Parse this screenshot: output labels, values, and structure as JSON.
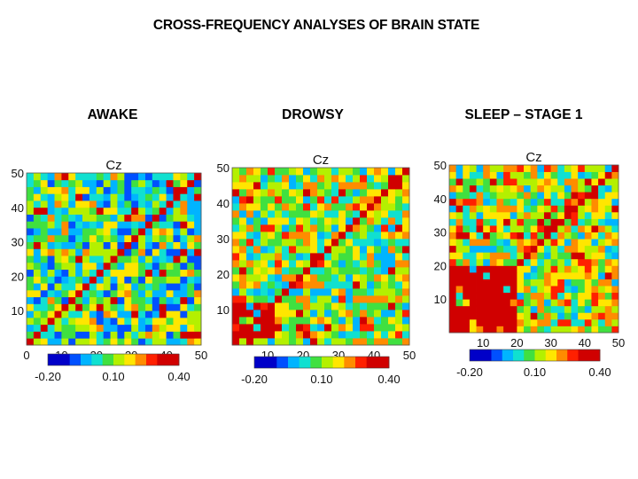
{
  "title": "CROSS-FREQUENCY ANALYSES OF BRAIN STATE",
  "chart_data": [
    {
      "type": "heatmap",
      "state": "AWAKE",
      "title": "Cz",
      "x_ticks": [
        "0",
        "10",
        "20",
        "30",
        "40",
        "50"
      ],
      "y_ticks": [
        "10",
        "20",
        "30",
        "40",
        "50"
      ],
      "xlim": [
        0,
        50
      ],
      "ylim": [
        0,
        50
      ],
      "colorbar": {
        "min_label": "-0.20",
        "mid_label": "0.10",
        "max_label": "0.40",
        "range": [
          -0.2,
          0.4
        ]
      },
      "description_values": {
        "background_level": 0.06,
        "diagonal_value": 0.4,
        "low_freq_block_value": null,
        "low_freq_block_extent": 0
      }
    },
    {
      "type": "heatmap",
      "state": "DROWSY",
      "title": "Cz",
      "x_ticks": [
        "10",
        "20",
        "30",
        "40",
        "50"
      ],
      "y_ticks": [
        "10",
        "20",
        "30",
        "40",
        "50"
      ],
      "xlim": [
        0,
        50
      ],
      "ylim": [
        0,
        50
      ],
      "colorbar": {
        "min_label": "-0.20",
        "mid_label": "0.10",
        "max_label": "0.40",
        "range": [
          -0.2,
          0.4
        ]
      },
      "description_values": {
        "background_level": 0.12,
        "diagonal_value": 0.4,
        "low_freq_block_value": 0.4,
        "low_freq_block_extent": 12
      }
    },
    {
      "type": "heatmap",
      "state": "SLEEP – STAGE 1",
      "title": "Cz",
      "x_ticks": [
        "10",
        "20",
        "30",
        "40",
        "50"
      ],
      "y_ticks": [
        "10",
        "20",
        "30",
        "40",
        "50"
      ],
      "xlim": [
        0,
        50
      ],
      "ylim": [
        0,
        50
      ],
      "colorbar": {
        "min_label": "-0.20",
        "mid_label": "0.10",
        "max_label": "0.40",
        "range": [
          -0.2,
          0.4
        ]
      },
      "description_values": {
        "background_level": 0.13,
        "diagonal_value": 0.4,
        "low_freq_block_value": 0.4,
        "low_freq_block_extent": 20
      }
    }
  ],
  "colors": {
    "colormap": [
      "#0000c8",
      "#0050ff",
      "#00b4ff",
      "#10e0d0",
      "#40e040",
      "#b4f000",
      "#ffe600",
      "#ff8c00",
      "#ff2000",
      "#d00000"
    ]
  }
}
